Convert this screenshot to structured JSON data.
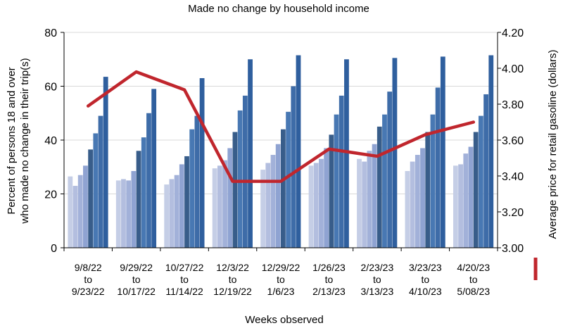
{
  "chart_data": {
    "type": "bar",
    "title": "Made no change by household income",
    "xlabel": "Weeks observed",
    "ylabel": "Percent of persons 18 and over who made no change in their trip(s)",
    "ylabel_lines": [
      "Percent of persons 18 and over",
      "who made no change in their trip(s)"
    ],
    "y2label": "Average price for retail gasoline (dollars)",
    "ylim": [
      0,
      80
    ],
    "y_ticks": [
      "0",
      "20",
      "40",
      "60",
      "80"
    ],
    "y2lim": [
      3.0,
      4.2
    ],
    "y2_ticks": [
      "3.00",
      "3.20",
      "3.40",
      "3.60",
      "3.80",
      "4.00",
      "4.20"
    ],
    "grid": true,
    "legend_position": "bottom-right",
    "categories": [
      [
        "9/8/22",
        "to",
        "9/23/22"
      ],
      [
        "9/29/22",
        "to",
        "10/17/22"
      ],
      [
        "10/27/22",
        "to",
        "11/14/22"
      ],
      [
        "12/3/22",
        "to",
        "12/19/22"
      ],
      [
        "12/29/22",
        "to",
        "1/6/23"
      ],
      [
        "1/26/23",
        "to",
        "2/13/23"
      ],
      [
        "2/23/23",
        "to",
        "3/13/23"
      ],
      [
        "3/23/23",
        "to",
        "4/10/23"
      ],
      [
        "4/20/23",
        "to",
        "5/08/23"
      ]
    ],
    "series_colors": [
      "#c5cee6",
      "#b3bedf",
      "#a2b1d9",
      "#8fa3d2",
      "#385d8a",
      "#4878b3",
      "#3e6ca8",
      "#2f5f9e"
    ],
    "series": [
      {
        "values": [
          26.5,
          25.0,
          23.5,
          29.5,
          29.0,
          30.5,
          33.0,
          28.5,
          30.5
        ]
      },
      {
        "values": [
          23.0,
          25.5,
          25.5,
          30.5,
          31.5,
          31.5,
          32.0,
          32.0,
          31.0
        ]
      },
      {
        "values": [
          27.0,
          25.0,
          27.0,
          32.5,
          34.5,
          33.0,
          36.0,
          34.5,
          35.0
        ]
      },
      {
        "values": [
          30.5,
          28.5,
          31.0,
          37.0,
          38.5,
          37.0,
          38.5,
          37.0,
          37.5
        ]
      },
      {
        "values": [
          36.5,
          36.0,
          34.0,
          43.0,
          44.0,
          42.0,
          45.0,
          43.0,
          43.0
        ]
      },
      {
        "values": [
          42.5,
          41.0,
          44.0,
          51.0,
          50.5,
          49.5,
          49.5,
          49.5,
          49.0
        ]
      },
      {
        "values": [
          49.0,
          50.0,
          49.0,
          56.5,
          60.0,
          56.5,
          58.0,
          59.5,
          57.0
        ]
      },
      {
        "values": [
          63.5,
          59.0,
          63.0,
          70.0,
          71.5,
          70.0,
          70.5,
          71.0,
          71.5
        ]
      }
    ],
    "line_series": {
      "axis": "right",
      "color": "#c0262d",
      "values": [
        3.79,
        3.98,
        3.88,
        3.37,
        3.37,
        3.55,
        3.51,
        3.63,
        3.7
      ]
    }
  }
}
